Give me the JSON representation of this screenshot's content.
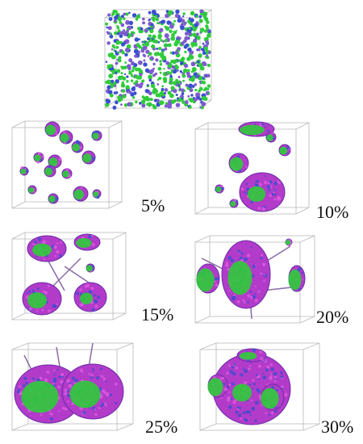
{
  "panels": [
    {
      "label": "5%"
    },
    {
      "label": "10%"
    },
    {
      "label": "15%"
    },
    {
      "label": "20%"
    },
    {
      "label": "25%"
    },
    {
      "label": "30%"
    }
  ]
}
